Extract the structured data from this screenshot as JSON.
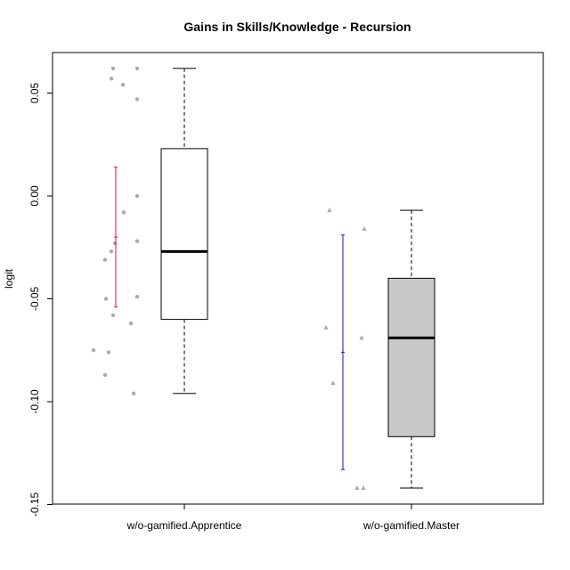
{
  "chart_data": {
    "type": "box",
    "title": "Gains in Skills/Knowledge - Recursion",
    "xlabel": "",
    "ylabel": "logit",
    "ylim": [
      -0.15,
      0.065
    ],
    "yticks": [
      -0.15,
      -0.1,
      -0.05,
      0.0,
      0.05
    ],
    "ytick_labels": [
      "-0.15",
      "-0.10",
      "-0.05",
      "0.00",
      "0.05"
    ],
    "categories": [
      "w/o-gamified.Apprentice",
      "w/o-gamified.Master"
    ],
    "grid": false,
    "boxes": [
      {
        "name": "w/o-gamified.Apprentice",
        "whisker_low": -0.096,
        "q1": -0.06,
        "median": -0.027,
        "q3": 0.023,
        "whisker_high": 0.062,
        "fill": "#ffffff",
        "mean": -0.02,
        "ci_low": -0.054,
        "ci_high": 0.014,
        "ci_color": "#e8112d",
        "point_marker": "circle",
        "points": [
          0.062,
          0.062,
          0.057,
          0.054,
          0.047,
          0.0,
          -0.008,
          -0.022,
          -0.023,
          -0.027,
          -0.031,
          -0.049,
          -0.05,
          -0.058,
          -0.062,
          -0.075,
          -0.076,
          -0.087,
          -0.096
        ]
      },
      {
        "name": "w/o-gamified.Master",
        "whisker_low": -0.142,
        "q1": -0.117,
        "median": -0.069,
        "q3": -0.04,
        "whisker_high": -0.007,
        "fill": "#c8c8c8",
        "mean": -0.076,
        "ci_low": -0.133,
        "ci_high": -0.019,
        "ci_color": "#1a10c8",
        "point_marker": "triangle",
        "points": [
          -0.007,
          -0.016,
          -0.064,
          -0.069,
          -0.091,
          -0.142,
          -0.142
        ]
      }
    ]
  }
}
